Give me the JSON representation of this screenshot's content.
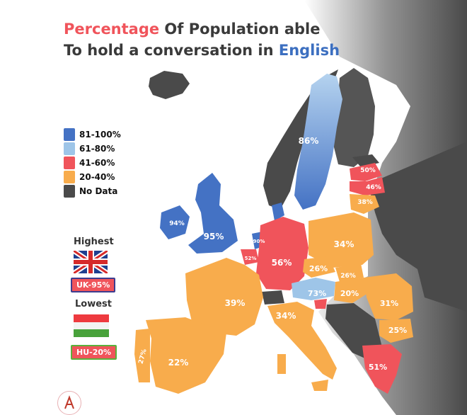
{
  "title": {
    "part1_highlight": "Percentage",
    "part1_rest": " Of Population able",
    "part2_rest": "To hold a conversation in ",
    "part2_highlight": "English"
  },
  "colors": {
    "band_81_100": "#4472c4",
    "band_61_80": "#9ec5e8",
    "band_41_60": "#f0545b",
    "band_20_40": "#f8ac4c",
    "no_data": "#4a4a4a",
    "title_red": "#f0545b",
    "title_blue": "#3c6fc0"
  },
  "legend": [
    {
      "label": "81-100%",
      "color": "#4472c4"
    },
    {
      "label": "61-80%",
      "color": "#9ec5e8"
    },
    {
      "label": "41-60%",
      "color": "#f0545b"
    },
    {
      "label": "20-40%",
      "color": "#f8ac4c"
    },
    {
      "label": "No Data",
      "color": "#4a4a4a"
    }
  ],
  "highest": {
    "label": "Highest",
    "badge": "UK-95%",
    "flag": "uk-flag-icon"
  },
  "lowest": {
    "label": "Lowest",
    "badge": "HU-20%",
    "flag": "hungary-flag-icon"
  },
  "countries": {
    "sweden": "86%",
    "ireland": "94%",
    "uk": "95%",
    "netherlands": "90%",
    "belgium": "52%",
    "germany": "56%",
    "poland": "34%",
    "latvia": "50%",
    "latvia_south": "46%",
    "lithuania": "38%",
    "czechia": "26%",
    "slovakia": "26%",
    "austria": "73%",
    "hungary": "20%",
    "romania": "31%",
    "bulgaria": "25%",
    "france": "39%",
    "italy": "34%",
    "spain": "22%",
    "portugal": "27%",
    "greece": "51%"
  }
}
